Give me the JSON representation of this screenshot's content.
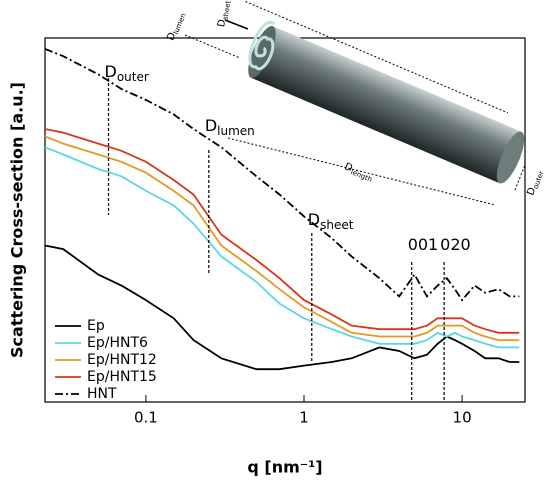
{
  "chart_data": {
    "type": "line",
    "xlabel": "q [nm⁻¹]",
    "ylabel": "Scattering Cross-section [a.u.]",
    "xscale": "log",
    "xlim": [
      0.023,
      25
    ],
    "xticks": [
      0.1,
      1,
      10
    ],
    "ylim": [
      0,
      100
    ],
    "legend": "lower left",
    "x": [
      0.023,
      0.03,
      0.05,
      0.07,
      0.1,
      0.15,
      0.2,
      0.3,
      0.5,
      0.7,
      1,
      1.5,
      2,
      3,
      4,
      5,
      6,
      7,
      8,
      9,
      10,
      12,
      14,
      17,
      20,
      23
    ],
    "series": [
      {
        "name": "Ep",
        "color": "#000000",
        "style": "solid",
        "values": [
          43,
          42,
          35,
          32,
          28,
          23,
          17,
          12,
          9,
          9,
          10,
          11,
          12,
          15,
          14,
          12,
          13,
          16,
          18,
          17,
          16,
          14,
          12,
          12,
          11,
          11
        ]
      },
      {
        "name": "Ep/HNT6",
        "color": "#5fd3ea",
        "style": "solid",
        "values": [
          70,
          68,
          64,
          62,
          58,
          54,
          49,
          40,
          33,
          27,
          23,
          20,
          18,
          16,
          16,
          16,
          17,
          19,
          18,
          19,
          18,
          17,
          16,
          15,
          15,
          15
        ]
      },
      {
        "name": "Ep/HNT12",
        "color": "#e39a22",
        "style": "solid",
        "values": [
          73,
          71,
          68,
          66,
          63,
          58,
          54,
          43,
          36,
          31,
          26,
          22,
          19,
          18,
          18,
          18,
          19,
          21,
          21,
          21,
          21,
          19,
          18,
          17,
          17,
          17
        ]
      },
      {
        "name": "Ep/HNT15",
        "color": "#d4381c",
        "style": "solid",
        "values": [
          75,
          74,
          71,
          69,
          66,
          61,
          57,
          46,
          39,
          34,
          28,
          24,
          21,
          20,
          20,
          20,
          21,
          23,
          23,
          23,
          23,
          21,
          20,
          19,
          19,
          19
        ]
      },
      {
        "name": "HNT",
        "color": "#000000",
        "style": "dash-dot",
        "values": [
          97,
          95,
          90,
          86,
          83,
          79,
          75,
          70,
          62,
          57,
          51,
          45,
          40,
          34,
          29,
          35,
          29,
          32,
          34,
          31,
          28,
          32,
          30,
          31,
          29,
          29
        ]
      }
    ],
    "annotations": [
      {
        "label": "D",
        "sub": "outer",
        "x": 0.058
      },
      {
        "label": "D",
        "sub": "lumen",
        "x": 0.25
      },
      {
        "label": "D",
        "sub": "sheet",
        "x": 1.12
      },
      {
        "label": "001",
        "x": 4.8
      },
      {
        "label": "020",
        "x": 7.7
      }
    ]
  },
  "illustration": {
    "lumen": {
      "label": "D",
      "sub": "lumen"
    },
    "sheet": {
      "label": "D",
      "sub": "sheet"
    },
    "length": {
      "label": "D",
      "sub": "length"
    },
    "outer": {
      "label": "D",
      "sub": "outer"
    }
  }
}
